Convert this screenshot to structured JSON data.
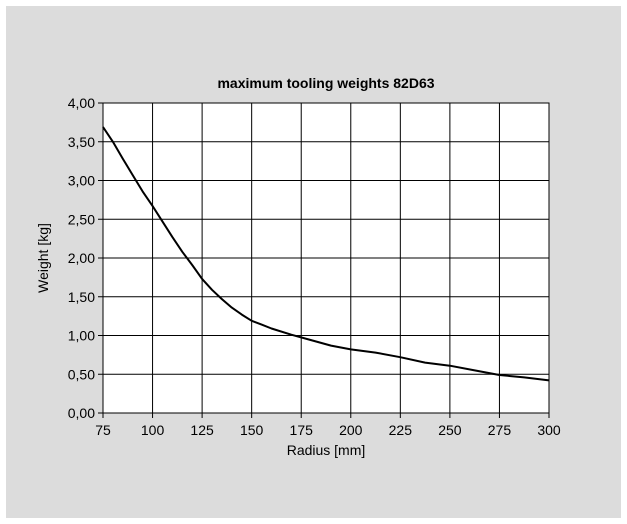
{
  "chart_data": {
    "type": "line",
    "title": "maximum tooling weights 82D63",
    "xlabel": "Radius [mm]",
    "ylabel": "Weight [kg]",
    "xlim": [
      75,
      300
    ],
    "ylim": [
      0,
      4
    ],
    "x_ticks": [
      75,
      100,
      125,
      150,
      175,
      200,
      225,
      250,
      275,
      300
    ],
    "x_tick_labels": [
      "75",
      "100",
      "125",
      "150",
      "175",
      "200",
      "225",
      "250",
      "275",
      "300"
    ],
    "y_ticks": [
      0,
      0.5,
      1,
      1.5,
      2,
      2.5,
      3,
      3.5,
      4
    ],
    "y_tick_labels": [
      "0,00",
      "0,50",
      "1,00",
      "1,50",
      "2,00",
      "2,50",
      "3,00",
      "3,50",
      "4,00"
    ],
    "grid": true,
    "legend": false,
    "colors": {
      "background": "#dcdcdc",
      "plot_area": "#ffffff",
      "line": "#000000",
      "grid": "#000000"
    },
    "series": [
      {
        "x": [
          75,
          80,
          85,
          90,
          95,
          100,
          105,
          110,
          115,
          120,
          125,
          130,
          135,
          140,
          145,
          150,
          155,
          160,
          170,
          180,
          190,
          200,
          212.5,
          225,
          237.5,
          250,
          262.5,
          275,
          287.5,
          300
        ],
        "values": [
          3.69,
          3.5,
          3.28,
          3.07,
          2.86,
          2.67,
          2.47,
          2.27,
          2.08,
          1.91,
          1.73,
          1.59,
          1.47,
          1.36,
          1.27,
          1.19,
          1.14,
          1.09,
          1.01,
          0.94,
          0.87,
          0.82,
          0.78,
          0.72,
          0.65,
          0.61,
          0.55,
          0.49,
          0.46,
          0.42
        ]
      }
    ]
  }
}
